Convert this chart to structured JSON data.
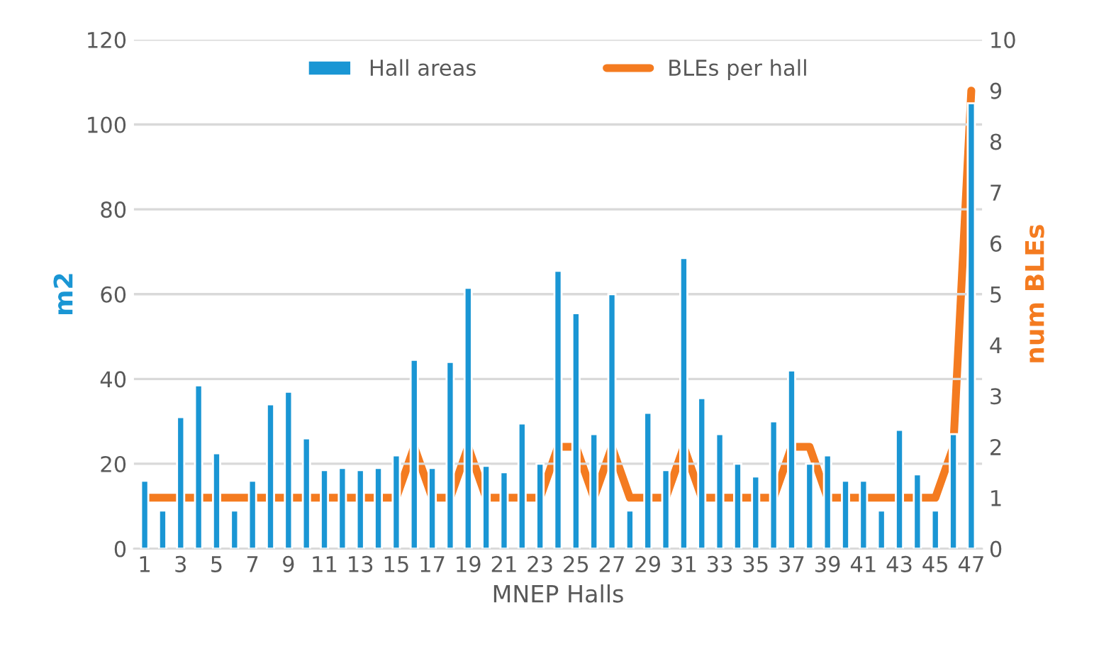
{
  "chart_data": {
    "type": "bar",
    "xlabel": "MNEP Halls",
    "ylabel": "m2",
    "y2label": "num BLEs",
    "categories": [
      "1",
      null,
      "3",
      null,
      "5",
      null,
      "7",
      null,
      "9",
      null,
      "11",
      null,
      "13",
      null,
      "15",
      null,
      "17",
      null,
      "19",
      null,
      "21",
      null,
      "23",
      null,
      "25",
      null,
      "27",
      null,
      "29",
      null,
      "31",
      null,
      "33",
      null,
      "35",
      null,
      "37",
      null,
      "39",
      null,
      "41",
      null,
      "43",
      null,
      "45",
      null,
      "47"
    ],
    "series": [
      {
        "name": "Hall areas",
        "color": "#1a96d4",
        "values": [
          16,
          9,
          31,
          38.5,
          22.5,
          9,
          16,
          34,
          37,
          26,
          18.5,
          19,
          18.5,
          19,
          22,
          44.5,
          19,
          44,
          61.5,
          19.5,
          18,
          29.5,
          20,
          65.5,
          55.5,
          27,
          60,
          9,
          32,
          18.5,
          68.5,
          35.5,
          27,
          20,
          17,
          30,
          42,
          20,
          22,
          16,
          16,
          9,
          28,
          17.5,
          9,
          27,
          105
        ]
      },
      {
        "name": "BLEs per hall",
        "type": "line",
        "axis": "y2",
        "color": "#f47b20",
        "values": [
          1,
          1,
          1,
          1,
          1,
          1,
          1,
          1,
          1,
          1,
          1,
          1,
          1,
          1,
          1,
          2,
          1,
          1,
          2,
          1,
          1,
          1,
          1,
          2,
          2,
          1,
          2,
          1,
          1,
          1,
          2,
          1,
          1,
          1,
          1,
          1,
          2,
          2,
          1,
          1,
          1,
          1,
          1,
          1,
          1,
          2,
          9
        ]
      }
    ],
    "ylim": [
      0,
      120
    ],
    "yticks": [
      0,
      20,
      40,
      60,
      80,
      100,
      120
    ],
    "y2lim": [
      0,
      10
    ],
    "y2ticks": [
      0,
      1,
      2,
      3,
      4,
      5,
      6,
      7,
      8,
      9,
      10
    ],
    "grid": "y",
    "legend": "top",
    "marker": "none",
    "line_style": "solid"
  }
}
